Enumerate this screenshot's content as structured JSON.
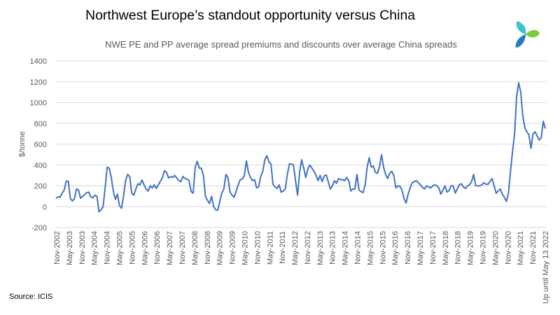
{
  "title": "Northwest Europe’s standout opportunity versus China",
  "source": "Source: ICIS",
  "colors": {
    "line": "#4472C4",
    "grid": "#D9D9D9",
    "logo": [
      "#3FC1D6",
      "#7BCB3A",
      "#1F7EC1"
    ]
  },
  "logo": {
    "icon": "icis-logo"
  },
  "chart_data": {
    "type": "line",
    "title": "",
    "subtitle": "NWE PE and PP average spread premiums and discounts over average China spreads",
    "xlabel": "",
    "ylabel": "$/tonne",
    "ylim": [
      -200,
      1400
    ],
    "yticks": [
      -200,
      0,
      200,
      400,
      600,
      800,
      1000,
      1200,
      1400
    ],
    "grid": "horizontal",
    "legend": "none",
    "x_tick_labels": [
      "Nov-2002",
      "May-2003",
      "Nov-2003",
      "May-2004",
      "Nov-2004",
      "May-2005",
      "Nov-2005",
      "May-2006",
      "Nov-2006",
      "May-2007",
      "Nov-2007",
      "May-2008",
      "Nov-2008",
      "May-2009",
      "Nov-2009",
      "May-2010",
      "Nov-2010",
      "May-2011",
      "Nov-2011",
      "May-2012",
      "Nov-2012",
      "May-2013",
      "Nov-2013",
      "May-2014",
      "Nov-2014",
      "May-2015",
      "Nov-2015",
      "May-2016",
      "Nov-2016",
      "May-2017",
      "Nov-2017",
      "May-2018",
      "Nov-2018",
      "May-2019",
      "Nov-2019",
      "May-2020",
      "Nov-2020",
      "May-2021",
      "Nov-2021",
      "Up until May 13 2022"
    ],
    "series": [
      {
        "values": [
          80,
          95,
          90,
          130,
          160,
          245,
          245,
          80,
          55,
          75,
          170,
          160,
          80,
          100,
          115,
          135,
          140,
          95,
          85,
          110,
          100,
          -50,
          -30,
          0,
          180,
          380,
          370,
          280,
          150,
          70,
          120,
          10,
          -15,
          100,
          250,
          310,
          290,
          130,
          110,
          170,
          220,
          210,
          255,
          210,
          170,
          150,
          200,
          180,
          210,
          175,
          210,
          245,
          280,
          345,
          330,
          275,
          290,
          280,
          300,
          275,
          250,
          240,
          290,
          270,
          265,
          250,
          145,
          130,
          380,
          435,
          370,
          370,
          300,
          100,
          60,
          30,
          100,
          0,
          -30,
          -35,
          50,
          130,
          170,
          310,
          280,
          140,
          110,
          90,
          150,
          210,
          260,
          265,
          300,
          440,
          330,
          280,
          250,
          260,
          180,
          190,
          290,
          340,
          450,
          490,
          430,
          410,
          215,
          190,
          175,
          210,
          140,
          150,
          170,
          310,
          410,
          410,
          400,
          250,
          110,
          330,
          450,
          370,
          280,
          360,
          400,
          370,
          340,
          300,
          250,
          300,
          240,
          295,
          305,
          240,
          170,
          200,
          250,
          225,
          270,
          260,
          260,
          250,
          280,
          250,
          150,
          170,
          170,
          310,
          160,
          145,
          135,
          210,
          380,
          470,
          380,
          390,
          330,
          320,
          380,
          500,
          380,
          310,
          270,
          320,
          340,
          300,
          180,
          200,
          195,
          160,
          80,
          35,
          120,
          180,
          230,
          240,
          250,
          230,
          210,
          185,
          170,
          200,
          190,
          180,
          200,
          210,
          200,
          180,
          120,
          160,
          200,
          140,
          155,
          200,
          200,
          130,
          170,
          210,
          220,
          190,
          175,
          200,
          210,
          240,
          310,
          200,
          200,
          200,
          210,
          230,
          215,
          215,
          240,
          270,
          200,
          130,
          150,
          170,
          120,
          90,
          50,
          130,
          340,
          530,
          700,
          1060,
          1190,
          1100,
          870,
          760,
          720,
          690,
          560,
          700,
          720,
          680,
          640,
          660,
          820,
          750
        ]
      }
    ]
  }
}
